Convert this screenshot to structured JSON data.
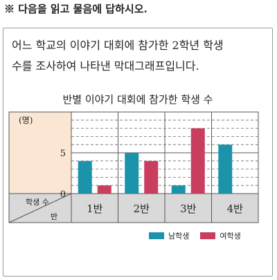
{
  "instruction": "※ 다음을 읽고 물음에 답하시오.",
  "question": {
    "line1": "어느 학교의 이야기 대회에 참가한 2학년 학생",
    "line2": "수를 조사하여 나타낸 막대그래프입니다."
  },
  "colors": {
    "male": "#1b93ab",
    "female": "#c93d5e",
    "axis_panel": "#fae6d2",
    "category_panel": "#d9d9d9"
  },
  "chart_data": {
    "type": "bar",
    "title": "반별 이야기 대회에 참가한 학생 수",
    "ylabel": "(명)",
    "ylim": [
      0,
      10
    ],
    "yticks": [
      0,
      5
    ],
    "corner_top": "학생 수",
    "corner_bottom": "반",
    "categories": [
      "1반",
      "2반",
      "3반",
      "4반"
    ],
    "series": [
      {
        "name": "남학생",
        "color": "#1b93ab",
        "values": [
          4,
          5,
          1,
          6
        ]
      },
      {
        "name": "여학생",
        "color": "#c93d5e",
        "values": [
          1,
          4,
          8,
          0
        ]
      }
    ],
    "grid": true,
    "legend": "bottom-right"
  }
}
